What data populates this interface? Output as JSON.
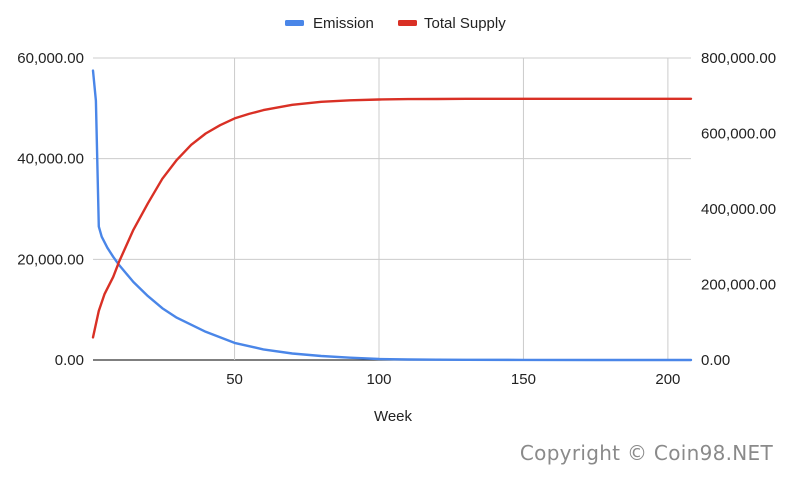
{
  "chart_data": {
    "type": "line",
    "xlabel": "Week",
    "xlim": [
      1,
      208
    ],
    "x_ticks": [
      50,
      100,
      150,
      200
    ],
    "y_left": {
      "ylim": [
        0,
        60000
      ],
      "ticks": [
        "0.00",
        "20,000.00",
        "40,000.00",
        "60,000.00"
      ]
    },
    "y_right": {
      "ylim": [
        0,
        800000
      ],
      "ticks": [
        "0.00",
        "200,000.00",
        "400,000.00",
        "600,000.00",
        "800,000.00"
      ]
    },
    "legend_position": "top-center",
    "grid": true,
    "series": [
      {
        "name": "Emission",
        "axis": "left",
        "color": "#4a86e8",
        "x": [
          1,
          2,
          3,
          4,
          6,
          8,
          10,
          15,
          20,
          25,
          30,
          40,
          50,
          60,
          70,
          80,
          90,
          100,
          110,
          120,
          130,
          150,
          175,
          200,
          208
        ],
        "y": [
          57500,
          51500,
          26500,
          24500,
          22300,
          20500,
          18900,
          15500,
          12700,
          10300,
          8400,
          5600,
          3400,
          2100,
          1300,
          800,
          450,
          200,
          100,
          60,
          30,
          10,
          5,
          0,
          0
        ]
      },
      {
        "name": "Total Supply",
        "axis": "right",
        "color": "#d93025",
        "x": [
          1,
          3,
          5,
          8,
          10,
          15,
          20,
          25,
          30,
          35,
          40,
          45,
          50,
          55,
          60,
          70,
          80,
          90,
          100,
          110,
          120,
          130,
          140,
          150,
          175,
          200,
          208
        ],
        "y": [
          60000,
          130000,
          175000,
          220000,
          260000,
          345000,
          415000,
          480000,
          530000,
          570000,
          600000,
          622000,
          640000,
          652000,
          662000,
          676000,
          684000,
          688000,
          690000,
          691000,
          691500,
          692000,
          692000,
          692000,
          692000,
          692000,
          692000
        ]
      }
    ]
  },
  "watermark": "Copyright © Coin98.NET"
}
